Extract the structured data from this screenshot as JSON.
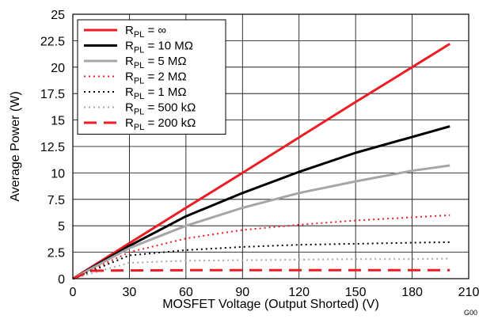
{
  "chart_data": {
    "type": "line",
    "xlabel": "MOSFET Voltage (Output Shorted) (V)",
    "ylabel": "Average Power (W)",
    "xlim": [
      0,
      210
    ],
    "ylim": [
      0,
      25
    ],
    "xticks": [
      "0",
      "30",
      "60",
      "90",
      "120",
      "150",
      "180",
      "210"
    ],
    "yticks": [
      "0",
      "2.5",
      "5",
      "7.5",
      "10",
      "12.5",
      "15",
      "17.5",
      "20",
      "22.5",
      "25"
    ],
    "grid": true,
    "legend_position": "top-left",
    "figure_id": "G00",
    "series": [
      {
        "name_main": "R",
        "name_sub": "PL",
        "name_tail": " = ∞",
        "color": "#ee1c25",
        "style": "solid",
        "width": 3,
        "x": [
          0,
          30,
          60,
          90,
          120,
          150,
          180,
          200
        ],
        "y": [
          0,
          3.35,
          6.7,
          10.0,
          13.35,
          16.7,
          20.0,
          22.2
        ]
      },
      {
        "name_main": "R",
        "name_sub": "PL",
        "name_tail": " = 10 MΩ",
        "color": "#000000",
        "style": "solid",
        "width": 3,
        "x": [
          0,
          30,
          60,
          90,
          120,
          150,
          180,
          200
        ],
        "y": [
          0,
          3.1,
          5.9,
          8.1,
          10.1,
          11.9,
          13.4,
          14.4
        ]
      },
      {
        "name_main": "R",
        "name_sub": "PL",
        "name_tail": " = 5 MΩ",
        "color": "#a6a6a6",
        "style": "solid",
        "width": 3,
        "x": [
          0,
          30,
          60,
          90,
          120,
          150,
          180,
          200
        ],
        "y": [
          0,
          2.9,
          5.0,
          6.7,
          8.1,
          9.2,
          10.2,
          10.7
        ]
      },
      {
        "name_main": "R",
        "name_sub": "PL",
        "name_tail": " = 2 MΩ",
        "color": "#ee1c25",
        "style": "dotted",
        "width": 2,
        "x": [
          0,
          30,
          60,
          90,
          120,
          150,
          180,
          200
        ],
        "y": [
          0,
          2.5,
          3.8,
          4.6,
          5.1,
          5.5,
          5.8,
          6.0
        ]
      },
      {
        "name_main": "R",
        "name_sub": "PL",
        "name_tail": " = 1 MΩ",
        "color": "#000000",
        "style": "dotted",
        "width": 2,
        "x": [
          0,
          30,
          60,
          90,
          120,
          150,
          180,
          200
        ],
        "y": [
          0,
          2.2,
          2.7,
          3.0,
          3.2,
          3.3,
          3.4,
          3.45
        ]
      },
      {
        "name_main": "R",
        "name_sub": "PL",
        "name_tail": " = 500 kΩ",
        "color": "#a6a6a6",
        "style": "dotted",
        "width": 2,
        "x": [
          0,
          30,
          60,
          90,
          120,
          150,
          180,
          200
        ],
        "y": [
          0,
          1.5,
          1.7,
          1.75,
          1.8,
          1.85,
          1.85,
          1.9
        ]
      },
      {
        "name_main": "R",
        "name_sub": "PL",
        "name_tail": " = 200 kΩ",
        "color": "#ee1c25",
        "style": "dashed",
        "width": 3,
        "x": [
          0,
          10,
          30,
          60,
          90,
          120,
          150,
          180,
          200
        ],
        "y": [
          0,
          0.75,
          0.78,
          0.8,
          0.8,
          0.8,
          0.8,
          0.8,
          0.8
        ]
      }
    ]
  }
}
